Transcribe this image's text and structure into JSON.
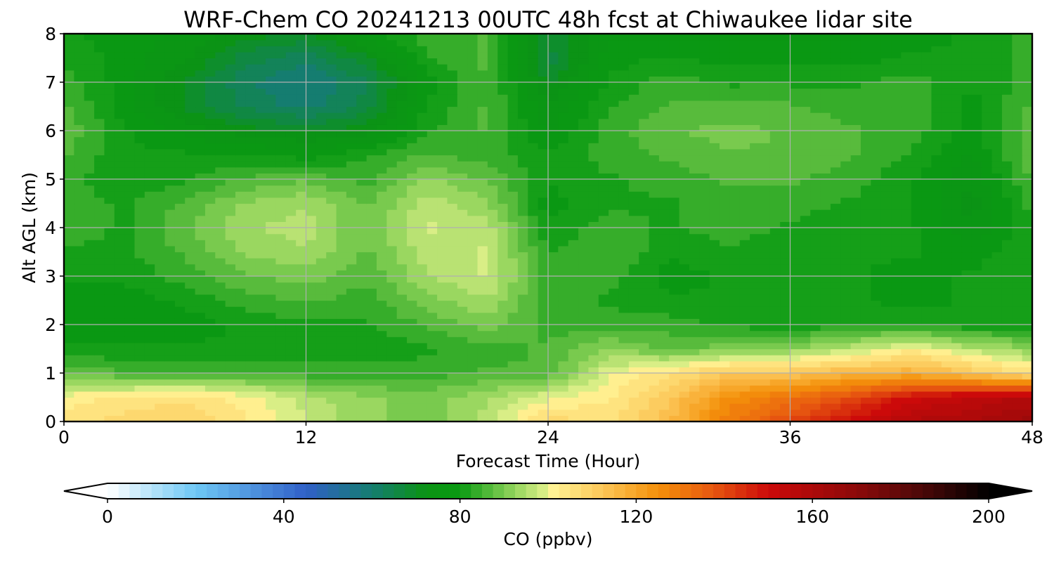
{
  "chart_data": {
    "type": "heatmap",
    "title": "WRF-Chem CO  20241213 00UTC 48h fcst at Chiwaukee lidar site",
    "xlabel": "Forecast Time (Hour)",
    "ylabel": "Alt AGL (km)",
    "xlim": [
      0,
      48
    ],
    "ylim": [
      0,
      8
    ],
    "x_ticks": [
      "0",
      "12",
      "24",
      "36",
      "48"
    ],
    "y_ticks": [
      "0",
      "1",
      "2",
      "3",
      "4",
      "5",
      "6",
      "7",
      "8"
    ],
    "grid": true,
    "variable": "CO",
    "units": "ppbv",
    "x": [
      0,
      3,
      6,
      9,
      12,
      15,
      18,
      21,
      24,
      27,
      30,
      33,
      36,
      39,
      42,
      45,
      48
    ],
    "y": [
      0,
      0.5,
      1,
      1.5,
      2,
      2.5,
      3,
      3.5,
      4,
      4.5,
      5,
      5.5,
      6,
      6.5,
      7,
      7.5,
      8
    ],
    "z": [
      [
        105,
        108,
        110,
        104,
        98,
        92,
        90,
        96,
        108,
        106,
        115,
        130,
        140,
        150,
        158,
        160,
        165
      ],
      [
        102,
        104,
        106,
        102,
        96,
        92,
        90,
        94,
        100,
        103,
        112,
        125,
        132,
        140,
        150,
        155,
        158
      ],
      [
        88,
        86,
        86,
        85,
        84,
        84,
        84,
        86,
        86,
        100,
        105,
        112,
        112,
        116,
        118,
        112,
        105
      ],
      [
        80,
        80,
        80,
        80,
        80,
        80,
        82,
        84,
        86,
        92,
        88,
        90,
        92,
        96,
        102,
        96,
        92
      ],
      [
        78,
        78,
        78,
        80,
        82,
        82,
        86,
        90,
        84,
        84,
        84,
        82,
        80,
        82,
        82,
        80,
        80
      ],
      [
        78,
        78,
        80,
        84,
        86,
        84,
        90,
        94,
        84,
        82,
        80,
        80,
        80,
        80,
        78,
        80,
        80
      ],
      [
        80,
        80,
        84,
        88,
        90,
        86,
        94,
        98,
        84,
        84,
        78,
        80,
        80,
        80,
        78,
        80,
        82
      ],
      [
        82,
        82,
        86,
        92,
        94,
        88,
        96,
        98,
        82,
        86,
        80,
        82,
        80,
        80,
        80,
        78,
        82
      ],
      [
        84,
        82,
        88,
        94,
        96,
        88,
        98,
        96,
        80,
        84,
        82,
        84,
        82,
        80,
        80,
        74,
        82
      ],
      [
        84,
        82,
        86,
        92,
        94,
        88,
        96,
        92,
        78,
        82,
        82,
        84,
        84,
        82,
        80,
        72,
        84
      ],
      [
        84,
        80,
        82,
        86,
        88,
        84,
        92,
        88,
        80,
        82,
        84,
        86,
        86,
        84,
        80,
        74,
        86
      ],
      [
        86,
        80,
        80,
        80,
        78,
        82,
        86,
        84,
        80,
        84,
        86,
        88,
        88,
        86,
        82,
        76,
        88
      ],
      [
        88,
        80,
        76,
        72,
        70,
        72,
        82,
        86,
        76,
        84,
        88,
        90,
        88,
        86,
        84,
        78,
        88
      ],
      [
        86,
        78,
        70,
        64,
        60,
        66,
        80,
        86,
        74,
        82,
        86,
        86,
        86,
        84,
        84,
        78,
        86
      ],
      [
        84,
        78,
        70,
        62,
        58,
        64,
        78,
        86,
        70,
        80,
        84,
        82,
        82,
        82,
        84,
        80,
        84
      ],
      [
        82,
        78,
        74,
        66,
        62,
        70,
        82,
        86,
        66,
        78,
        80,
        78,
        78,
        78,
        80,
        80,
        84
      ],
      [
        80,
        78,
        76,
        72,
        70,
        78,
        84,
        86,
        68,
        76,
        76,
        76,
        76,
        76,
        78,
        80,
        84
      ]
    ],
    "colorbar": {
      "label": "CO  (ppbv)",
      "min": 0,
      "max": 200,
      "extend": "both",
      "ticks": [
        "0",
        "40",
        "80",
        "120",
        "160",
        "200"
      ],
      "colormap": [
        {
          "v": 0,
          "c": "#ffffff"
        },
        {
          "v": 20,
          "c": "#6ec8f5"
        },
        {
          "v": 45,
          "c": "#3060c8"
        },
        {
          "v": 60,
          "c": "#157d70"
        },
        {
          "v": 72,
          "c": "#0b9315"
        },
        {
          "v": 80,
          "c": "#0a9a12"
        },
        {
          "v": 92,
          "c": "#8fd35a"
        },
        {
          "v": 99,
          "c": "#d9ee86"
        },
        {
          "v": 100,
          "c": "#fff79a"
        },
        {
          "v": 112,
          "c": "#fcc85a"
        },
        {
          "v": 125,
          "c": "#f4900a"
        },
        {
          "v": 137,
          "c": "#e85a10"
        },
        {
          "v": 150,
          "c": "#cc0a0a"
        },
        {
          "v": 170,
          "c": "#8c0a0a"
        },
        {
          "v": 185,
          "c": "#4a0808"
        },
        {
          "v": 200,
          "c": "#000000"
        }
      ]
    }
  }
}
